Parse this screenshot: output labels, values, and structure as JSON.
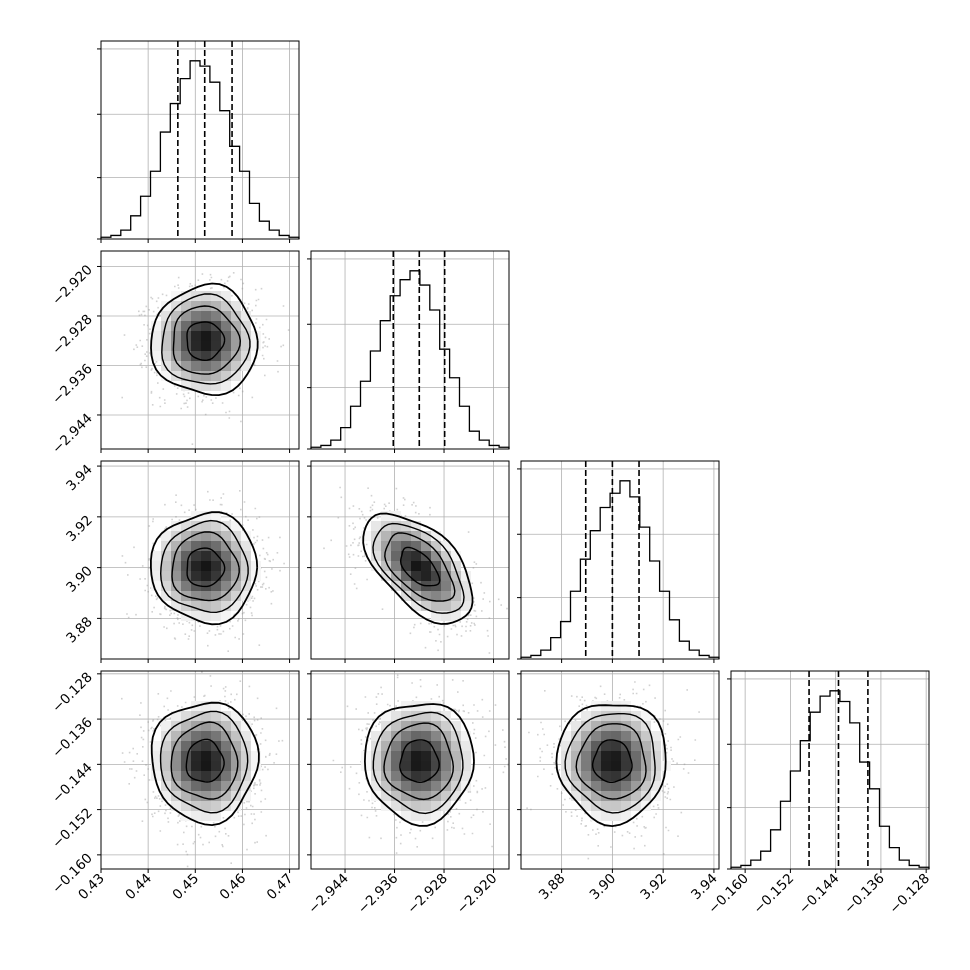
{
  "colors": {
    "ink": "#000000",
    "grid": "#b0b0b0",
    "frame": "#000000",
    "scatter": "#9a9a9a",
    "background": "#ffffff"
  },
  "chart_data": {
    "type": "corner",
    "grid": true,
    "n_params": 4,
    "params": [
      {
        "range": [
          0.43,
          0.472
        ],
        "ticks": [
          "0.43",
          "0.44",
          "0.45",
          "0.46",
          "0.47"
        ],
        "tick_values": [
          0.43,
          0.44,
          0.45,
          0.46,
          0.47
        ],
        "mean": 0.452,
        "sd": 0.0055,
        "quantiles": [
          0.4463,
          0.452,
          0.4578
        ]
      },
      {
        "range": [
          -2.9495,
          -2.9175
        ],
        "ticks": [
          "−2.944",
          "−2.936",
          "−2.928",
          "−2.920"
        ],
        "tick_values": [
          -2.944,
          -2.936,
          -2.928,
          -2.92
        ],
        "mean": -2.932,
        "sd": 0.0043,
        "quantiles": [
          -2.9362,
          -2.932,
          -2.9279
        ]
      },
      {
        "range": [
          3.864,
          3.942
        ],
        "ticks": [
          "3.88",
          "3.90",
          "3.92",
          "3.94"
        ],
        "tick_values": [
          3.88,
          3.9,
          3.92,
          3.94
        ],
        "mean": 3.9,
        "sd": 0.0105,
        "quantiles": [
          3.8895,
          3.9,
          3.9105
        ]
      },
      {
        "range": [
          -0.1625,
          -0.1275
        ],
        "ticks": [
          "−0.160",
          "−0.152",
          "−0.144",
          "−0.136",
          "−0.128"
        ],
        "tick_values": [
          -0.16,
          -0.152,
          -0.144,
          -0.136,
          -0.128
        ],
        "mean": -0.1435,
        "sd": 0.0052,
        "quantiles": [
          -0.1487,
          -0.1435,
          -0.1383
        ]
      }
    ],
    "correlations": {
      "2,1": -0.55,
      "3,0": 0.0,
      "3,1": 0.0,
      "3,2": 0.0,
      "1,0": 0.0,
      "2,0": 0.0
    },
    "histograms": [
      {
        "bins": 20,
        "counts": [
          0.01,
          0.02,
          0.05,
          0.13,
          0.24,
          0.38,
          0.6,
          0.76,
          0.9,
          1.0,
          0.97,
          0.88,
          0.72,
          0.52,
          0.38,
          0.2,
          0.1,
          0.05,
          0.02,
          0.01
        ]
      },
      {
        "bins": 20,
        "counts": [
          0.01,
          0.02,
          0.05,
          0.12,
          0.24,
          0.38,
          0.55,
          0.72,
          0.86,
          0.95,
          1.0,
          0.92,
          0.78,
          0.56,
          0.4,
          0.24,
          0.1,
          0.05,
          0.02,
          0.01
        ]
      },
      {
        "bins": 20,
        "counts": [
          0.01,
          0.02,
          0.05,
          0.12,
          0.21,
          0.38,
          0.56,
          0.72,
          0.85,
          0.93,
          1.0,
          0.91,
          0.74,
          0.55,
          0.38,
          0.22,
          0.1,
          0.05,
          0.02,
          0.01
        ]
      },
      {
        "bins": 20,
        "counts": [
          0.01,
          0.02,
          0.05,
          0.1,
          0.22,
          0.38,
          0.55,
          0.72,
          0.88,
          0.97,
          1.0,
          0.94,
          0.82,
          0.6,
          0.45,
          0.24,
          0.12,
          0.05,
          0.02,
          0.01
        ]
      }
    ]
  }
}
